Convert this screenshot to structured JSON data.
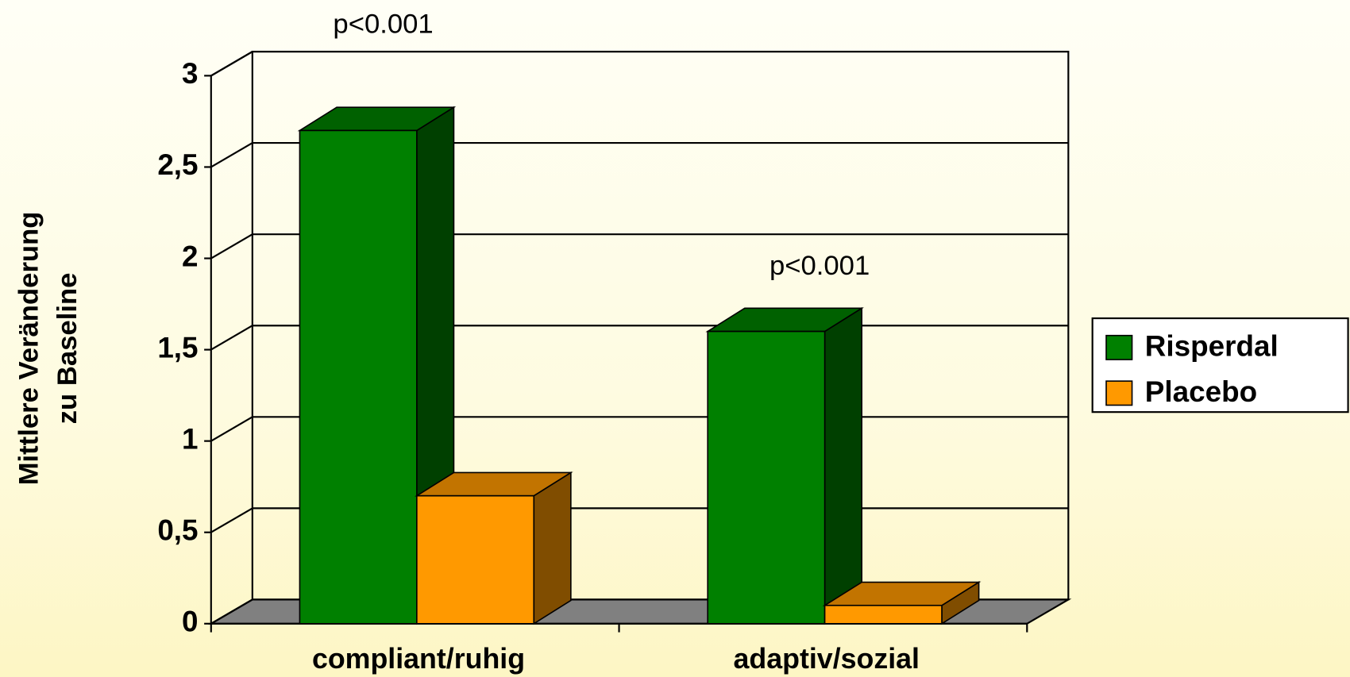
{
  "chart_data": {
    "type": "bar3d",
    "ylabel": [
      "Mittlere Veränderung",
      "zu Baseline"
    ],
    "categories": [
      "compliant/ruhig",
      "adaptiv/sozial"
    ],
    "series": [
      {
        "name": "Risperdal",
        "color": "#008000",
        "values": [
          2.7,
          1.6
        ]
      },
      {
        "name": "Placebo",
        "color": "#ff9900",
        "values": [
          0.7,
          0.1
        ]
      }
    ],
    "annotations": [
      "p<0.001",
      "p<0.001"
    ],
    "ylim": [
      0,
      3
    ],
    "yticks": [
      0,
      {
        "value": 0.5,
        "label": "0,5"
      },
      1,
      {
        "value": 1.5,
        "label": "1,5"
      },
      2,
      {
        "value": 2.5,
        "label": "2,5"
      },
      3
    ],
    "grid": true,
    "legend": "right"
  }
}
